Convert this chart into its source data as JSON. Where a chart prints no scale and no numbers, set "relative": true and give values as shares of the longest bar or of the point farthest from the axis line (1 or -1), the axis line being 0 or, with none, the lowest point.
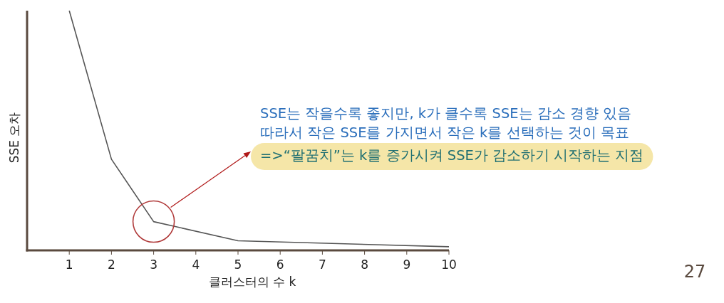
{
  "chart_data": {
    "type": "line",
    "xlabel": "클러스터의 수 k",
    "ylabel": "SSE 오차",
    "relative": true,
    "x": [
      1,
      2,
      3,
      5,
      10
    ],
    "series": [
      {
        "color": "#555555",
        "values": [
          1,
          0.38,
          0.12,
          0.04,
          0.015
        ]
      }
    ],
    "xlim": [
      0,
      10
    ],
    "xticks": [
      1,
      2,
      3,
      4,
      5,
      6,
      7,
      8,
      9,
      10
    ],
    "tick_labels": "x",
    "marker": "none",
    "line_style": "solid",
    "grid": false,
    "annotations": [
      "SSE는 작을수록 좋지만, k가 클수록 SSE는 감소 경향 있음",
      "따라서 작은 SSE를 가지면서 작은 k를 선택하는 것이 목표",
      "=>“팔꿈치”는 k를 증가시켜 SSE가 감소하기 시작하는 지점",
      "27"
    ]
  }
}
